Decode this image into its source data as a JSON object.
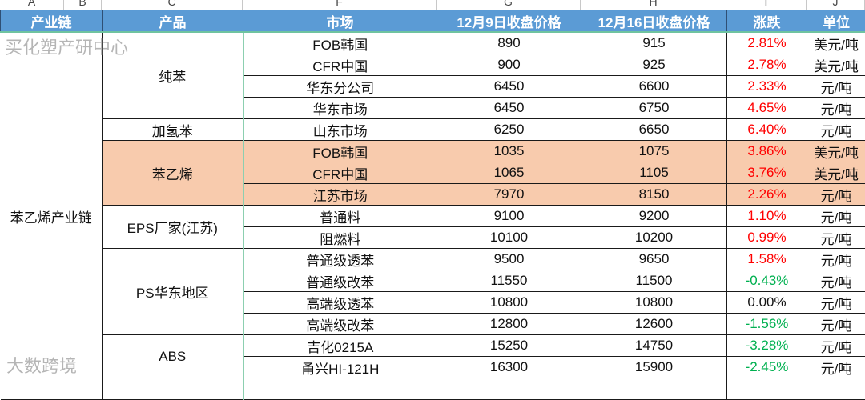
{
  "column_letters": [
    "A",
    "B",
    "C",
    "F",
    "G",
    "H",
    "I",
    "J"
  ],
  "headers": [
    "产业链",
    "产品",
    "市场",
    "12月9日收盘价格",
    "12月16日收盘价格",
    "涨跌",
    "单位"
  ],
  "chain": "苯乙烯产业链",
  "products": [
    "纯苯",
    "加氢苯",
    "苯乙烯",
    "EPS厂家(江苏)",
    "PS华东地区",
    "ABS"
  ],
  "rows": [
    {
      "market": "FOB韩国",
      "p1": "890",
      "p2": "915",
      "chg": "2.81%",
      "dir": "up",
      "unit": "美元/吨"
    },
    {
      "market": "CFR中国",
      "p1": "900",
      "p2": "925",
      "chg": "2.78%",
      "dir": "up",
      "unit": "美元/吨"
    },
    {
      "market": "华东分公司",
      "p1": "6450",
      "p2": "6600",
      "chg": "2.33%",
      "dir": "up",
      "unit": "元/吨"
    },
    {
      "market": "华东市场",
      "p1": "6450",
      "p2": "6750",
      "chg": "4.65%",
      "dir": "up",
      "unit": "元/吨"
    },
    {
      "market": "山东市场",
      "p1": "6250",
      "p2": "6650",
      "chg": "6.40%",
      "dir": "up",
      "unit": "元/吨"
    },
    {
      "market": "FOB韩国",
      "p1": "1035",
      "p2": "1075",
      "chg": "3.86%",
      "dir": "up",
      "unit": "美元/吨"
    },
    {
      "market": "CFR中国",
      "p1": "1065",
      "p2": "1105",
      "chg": "3.76%",
      "dir": "up",
      "unit": "美元/吨"
    },
    {
      "market": "江苏市场",
      "p1": "7970",
      "p2": "8150",
      "chg": "2.26%",
      "dir": "up",
      "unit": "元/吨"
    },
    {
      "market": "普通料",
      "p1": "9100",
      "p2": "9200",
      "chg": "1.10%",
      "dir": "up",
      "unit": "元/吨"
    },
    {
      "market": "阻燃料",
      "p1": "10100",
      "p2": "10200",
      "chg": "0.99%",
      "dir": "up",
      "unit": "元/吨"
    },
    {
      "market": "普通级透苯",
      "p1": "9500",
      "p2": "9650",
      "chg": "1.58%",
      "dir": "up",
      "unit": "元/吨"
    },
    {
      "market": "普通级改苯",
      "p1": "11550",
      "p2": "11500",
      "chg": "-0.43%",
      "dir": "down",
      "unit": "元/吨"
    },
    {
      "market": "高端级透苯",
      "p1": "10800",
      "p2": "10800",
      "chg": "0.00%",
      "dir": "flat",
      "unit": "元/吨"
    },
    {
      "market": "高端级改苯",
      "p1": "12800",
      "p2": "12600",
      "chg": "-1.56%",
      "dir": "down",
      "unit": "元/吨"
    },
    {
      "market": "吉化0215A",
      "p1": "15250",
      "p2": "14750",
      "chg": "-3.28%",
      "dir": "down",
      "unit": "元/吨"
    },
    {
      "market": "甬兴HI-121H",
      "p1": "16300",
      "p2": "15900",
      "chg": "-2.45%",
      "dir": "down",
      "unit": "元/吨"
    }
  ],
  "colors": {
    "header_bg": "#5b9bd5",
    "highlight": "#f8cbad",
    "up": "#ff0000",
    "down": "#00b050"
  },
  "watermarks": [
    "大数跨境",
    "买化塑产研中心"
  ]
}
